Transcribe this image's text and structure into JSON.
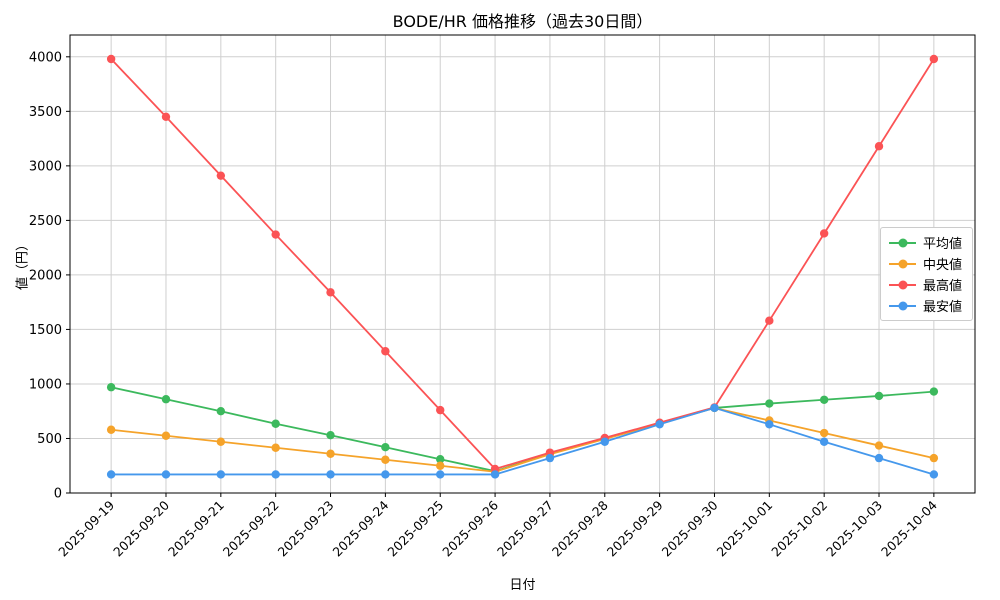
{
  "chart_data": {
    "type": "line",
    "title": "BODE/HR 価格推移（過去30日間）",
    "xlabel": "日付",
    "ylabel": "値（円）",
    "categories": [
      "2025-09-19",
      "2025-09-20",
      "2025-09-21",
      "2025-09-22",
      "2025-09-23",
      "2025-09-24",
      "2025-09-25",
      "2025-09-26",
      "2025-09-27",
      "2025-09-28",
      "2025-09-29",
      "2025-09-30",
      "2025-10-01",
      "2025-10-02",
      "2025-10-03",
      "2025-10-04"
    ],
    "series": [
      {
        "name": "平均値",
        "color": "#3cb95d",
        "values": [
          970,
          860,
          750,
          635,
          530,
          420,
          310,
          200,
          360,
          500,
          640,
          780,
          820,
          855,
          890,
          930
        ]
      },
      {
        "name": "中央値",
        "color": "#f5a32a",
        "values": [
          580,
          525,
          470,
          415,
          360,
          305,
          250,
          195,
          355,
          495,
          635,
          780,
          665,
          550,
          435,
          320
        ]
      },
      {
        "name": "最高値",
        "color": "#fb5355",
        "values": [
          3980,
          3450,
          2910,
          2370,
          1840,
          1300,
          760,
          220,
          370,
          505,
          645,
          785,
          1580,
          2380,
          3180,
          3980
        ]
      },
      {
        "name": "最安値",
        "color": "#4598ec",
        "values": [
          170,
          170,
          170,
          170,
          170,
          170,
          170,
          170,
          320,
          470,
          630,
          780,
          630,
          470,
          320,
          170
        ]
      }
    ],
    "ylim": [
      0,
      4200
    ],
    "yticks": [
      0,
      500,
      1000,
      1500,
      2000,
      2500,
      3000,
      3500,
      4000
    ],
    "grid": true,
    "grid_color": "#cfcfcf",
    "axis_color": "#000000",
    "marker": "circle",
    "legend_position": "center right"
  }
}
